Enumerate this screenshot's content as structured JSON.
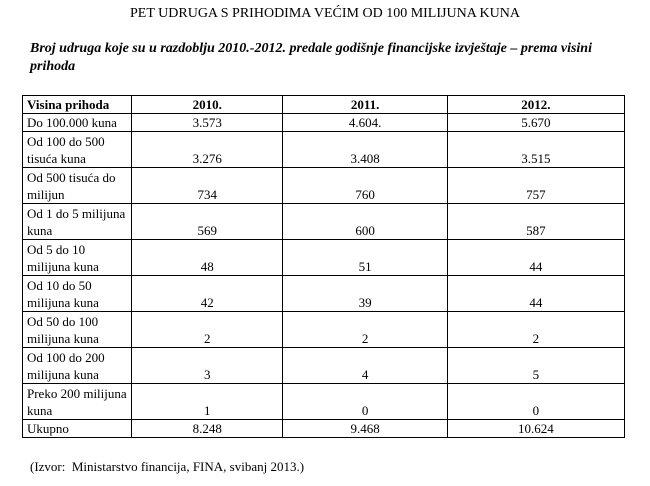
{
  "title": "PET UDRUGA S PRIHODIMA VEĆIM OD 100 MILIJUNA KUNA",
  "subtitle": "Broj udruga koje su u razdoblju 2010.-2012. predale godišnje financijske izvještaje – prema visini prihoda",
  "table": {
    "header": [
      "Visina prihoda",
      "2010.",
      "2011.",
      "2012."
    ],
    "rows": [
      [
        "Do 100.000 kuna",
        "3.573",
        "4.604.",
        "5.670"
      ],
      [
        "Od 100 do 500 tisuća kuna",
        "3.276",
        "3.408",
        "3.515"
      ],
      [
        "Od 500 tisuća do milijun",
        "734",
        "760",
        "757"
      ],
      [
        "Od 1 do 5 milijuna kuna",
        "569",
        "600",
        "587"
      ],
      [
        "Od 5 do 10 milijuna kuna",
        "48",
        "51",
        "44"
      ],
      [
        "Od 10 do 50 milijuna kuna",
        "42",
        "39",
        "44"
      ],
      [
        "Od 50 do 100 milijuna kuna",
        "2",
        "2",
        "2"
      ],
      [
        "Od 100 do 200 milijuna kuna",
        "3",
        "4",
        "5"
      ],
      [
        "Preko 200 milijuna kuna",
        "1",
        "0",
        "0"
      ],
      [
        "Ukupno",
        "8.248",
        "9.468",
        "10.624"
      ]
    ]
  },
  "source": "(Izvor:  Ministarstvo financija, FINA, svibanj 2013.)"
}
